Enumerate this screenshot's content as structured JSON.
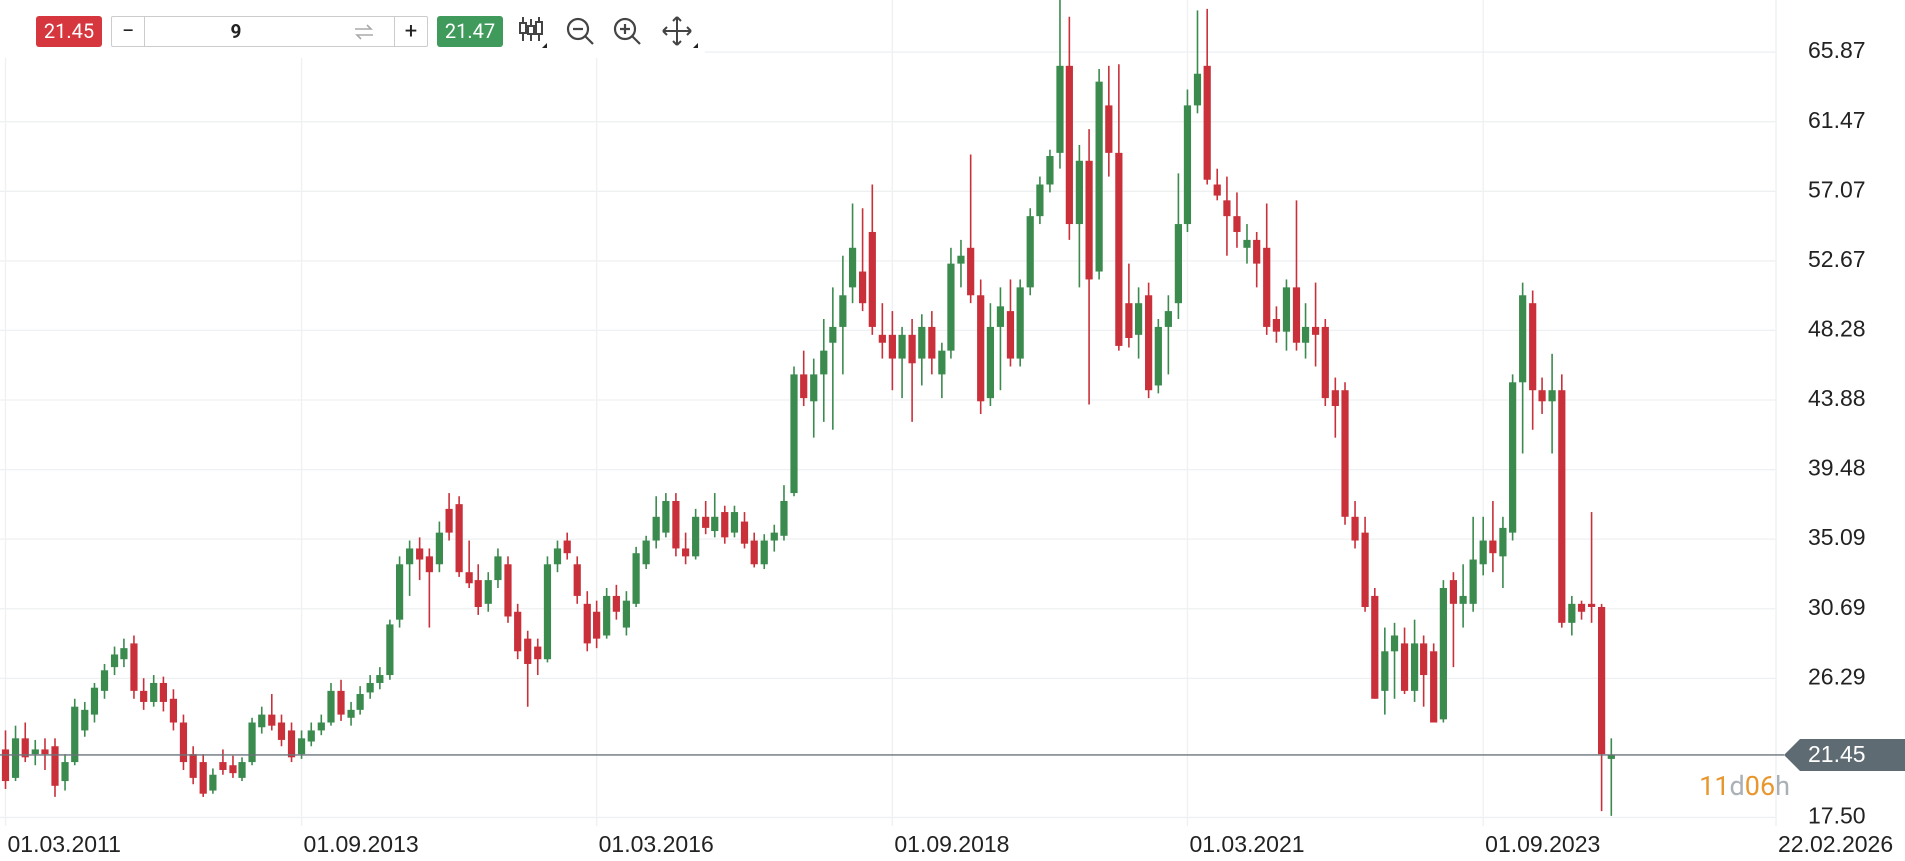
{
  "ui": {
    "bid": "21.45",
    "minus": "−",
    "quantity": "9",
    "plus": "+",
    "ask": "21.47",
    "countdown": [
      "11",
      "d",
      "06",
      "h"
    ]
  },
  "chart_data": {
    "type": "candlestick",
    "up_color": "#3b8a4e",
    "down_color": "#c9303a",
    "grid": true,
    "current_price": 21.45,
    "xlim": [
      "12.02.2011",
      "22.02.2026"
    ],
    "xticks": [
      "01.03.2011",
      "01.09.2013",
      "01.03.2016",
      "01.09.2018",
      "01.03.2021",
      "01.09.2023",
      "22.02.2026"
    ],
    "ylim": [
      16.96,
      69.16
    ],
    "yticks": [
      {
        "value": 17.5,
        "label": "17.50"
      },
      26.29,
      30.69,
      35.09,
      39.48,
      43.88,
      48.28,
      52.67,
      57.07,
      61.47,
      65.87
    ],
    "x": [
      "01.03.2011",
      "01.04.2011",
      "01.05.2011",
      "01.06.2011",
      "01.07.2011",
      "01.08.2011",
      "01.09.2011",
      "01.10.2011",
      "01.11.2011",
      "01.12.2011",
      "01.01.2012",
      "01.02.2012",
      "01.03.2012",
      "01.04.2012",
      "01.05.2012",
      "01.06.2012",
      "01.07.2012",
      "01.08.2012",
      "01.09.2012",
      "01.10.2012",
      "01.11.2012",
      "01.12.2012",
      "01.01.2013",
      "01.02.2013",
      "01.03.2013",
      "01.04.2013",
      "01.05.2013",
      "01.06.2013",
      "01.07.2013",
      "01.08.2013",
      "01.09.2013",
      "01.10.2013",
      "01.11.2013",
      "01.12.2013",
      "01.01.2014",
      "01.02.2014",
      "01.03.2014",
      "01.04.2014",
      "01.05.2014",
      "01.06.2014",
      "01.07.2014",
      "01.08.2014",
      "01.09.2014",
      "01.10.2014",
      "01.11.2014",
      "01.12.2014",
      "01.01.2015",
      "01.02.2015",
      "01.03.2015",
      "01.04.2015",
      "01.05.2015",
      "01.06.2015",
      "01.07.2015",
      "01.08.2015",
      "01.09.2015",
      "01.10.2015",
      "01.11.2015",
      "01.12.2015",
      "01.01.2016",
      "01.02.2016",
      "01.03.2016",
      "01.04.2016",
      "01.05.2016",
      "01.06.2016",
      "01.07.2016",
      "01.08.2016",
      "01.09.2016",
      "01.10.2016",
      "01.11.2016",
      "01.12.2016",
      "01.01.2017",
      "01.02.2017",
      "01.03.2017",
      "01.04.2017",
      "01.05.2017",
      "01.06.2017",
      "01.07.2017",
      "01.08.2017",
      "01.09.2017",
      "01.10.2017",
      "01.11.2017",
      "01.12.2017",
      "01.01.2018",
      "01.02.2018",
      "01.03.2018",
      "01.04.2018",
      "01.05.2018",
      "01.06.2018",
      "01.07.2018",
      "01.08.2018",
      "01.09.2018",
      "01.10.2018",
      "01.11.2018",
      "01.12.2018",
      "01.01.2019",
      "01.02.2019",
      "01.03.2019",
      "01.04.2019",
      "01.05.2019",
      "01.06.2019",
      "01.07.2019",
      "01.08.2019",
      "01.09.2019",
      "01.10.2019",
      "01.11.2019",
      "01.12.2019",
      "01.01.2020",
      "01.02.2020",
      "01.03.2020",
      "01.04.2020",
      "01.05.2020",
      "01.06.2020",
      "01.07.2020",
      "01.08.2020",
      "01.09.2020",
      "01.10.2020",
      "01.11.2020",
      "01.12.2020",
      "01.01.2021",
      "01.02.2021",
      "01.03.2021",
      "01.04.2021",
      "01.05.2021",
      "01.06.2021",
      "01.07.2021",
      "01.08.2021",
      "01.09.2021",
      "01.10.2021",
      "01.11.2021",
      "01.12.2021",
      "01.01.2022",
      "01.02.2022",
      "01.03.2022",
      "01.04.2022",
      "01.05.2022",
      "01.06.2022",
      "01.07.2022",
      "01.08.2022",
      "01.09.2022",
      "01.10.2022",
      "01.11.2022",
      "01.12.2022",
      "01.01.2023",
      "01.02.2023",
      "01.03.2023",
      "01.04.2023",
      "01.05.2023",
      "01.06.2023",
      "01.07.2023",
      "01.08.2023",
      "01.09.2023",
      "01.10.2023",
      "01.11.2023",
      "01.12.2023",
      "01.01.2024",
      "01.02.2024",
      "01.03.2024",
      "01.04.2024",
      "01.05.2024",
      "01.06.2024",
      "01.07.2024",
      "01.08.2024",
      "01.09.2024",
      "01.10.2024"
    ],
    "ohlc": [
      [
        21.8,
        23.0,
        19.3,
        19.8
      ],
      [
        20.0,
        23.3,
        19.8,
        22.5
      ],
      [
        22.5,
        23.5,
        21.0,
        21.3
      ],
      [
        21.5,
        22.4,
        20.8,
        21.8
      ],
      [
        21.8,
        22.5,
        20.5,
        21.5
      ],
      [
        22.0,
        22.5,
        18.8,
        19.5
      ],
      [
        19.8,
        21.5,
        19.2,
        21.0
      ],
      [
        21.0,
        25.0,
        20.8,
        24.5
      ],
      [
        23.0,
        24.8,
        22.6,
        24.3
      ],
      [
        24.0,
        26.0,
        23.5,
        25.7
      ],
      [
        25.5,
        27.2,
        25.0,
        26.8
      ],
      [
        27.0,
        28.3,
        26.5,
        27.8
      ],
      [
        27.5,
        28.8,
        27.0,
        28.2
      ],
      [
        28.5,
        29.0,
        25.0,
        25.5
      ],
      [
        25.5,
        26.3,
        24.3,
        24.8
      ],
      [
        24.8,
        26.5,
        24.5,
        26.0
      ],
      [
        26.0,
        26.4,
        24.2,
        24.8
      ],
      [
        25.0,
        25.6,
        23.0,
        23.5
      ],
      [
        23.5,
        24.0,
        20.5,
        21.0
      ],
      [
        21.5,
        22.0,
        19.6,
        20.0
      ],
      [
        21.0,
        21.5,
        18.8,
        19.0
      ],
      [
        19.2,
        20.6,
        19.0,
        20.2
      ],
      [
        21.0,
        21.8,
        20.2,
        20.5
      ],
      [
        20.8,
        21.4,
        20.0,
        20.3
      ],
      [
        20.0,
        21.3,
        19.8,
        21.0
      ],
      [
        21.0,
        23.8,
        20.8,
        23.5
      ],
      [
        23.2,
        24.5,
        22.8,
        24.0
      ],
      [
        24.0,
        25.3,
        23.0,
        23.3
      ],
      [
        23.5,
        24.0,
        22.0,
        22.4
      ],
      [
        23.0,
        23.5,
        21.0,
        21.3
      ],
      [
        21.5,
        23.0,
        21.2,
        22.5
      ],
      [
        22.3,
        23.5,
        22.0,
        23.0
      ],
      [
        23.0,
        24.0,
        22.7,
        23.5
      ],
      [
        23.5,
        26.0,
        23.3,
        25.5
      ],
      [
        25.5,
        26.2,
        23.6,
        24.0
      ],
      [
        23.8,
        24.8,
        23.3,
        24.3
      ],
      [
        24.3,
        25.8,
        24.0,
        25.3
      ],
      [
        25.4,
        26.5,
        25.0,
        26.0
      ],
      [
        26.0,
        27.0,
        25.6,
        26.5
      ],
      [
        26.5,
        30.0,
        26.2,
        29.7
      ],
      [
        30.0,
        34.0,
        29.5,
        33.5
      ],
      [
        33.5,
        35.0,
        31.5,
        34.5
      ],
      [
        34.5,
        35.2,
        32.5,
        33.8
      ],
      [
        34.0,
        34.5,
        29.5,
        33.0
      ],
      [
        33.5,
        36.2,
        33.0,
        35.5
      ],
      [
        37.0,
        38.0,
        35.0,
        35.5
      ],
      [
        37.3,
        37.8,
        32.7,
        33.0
      ],
      [
        33.0,
        35.0,
        32.0,
        32.3
      ],
      [
        32.5,
        33.5,
        30.3,
        30.8
      ],
      [
        31.0,
        33.0,
        30.5,
        32.5
      ],
      [
        32.5,
        34.5,
        32.0,
        34.0
      ],
      [
        33.5,
        34.0,
        29.8,
        30.2
      ],
      [
        30.5,
        31.0,
        27.5,
        28.0
      ],
      [
        28.8,
        29.3,
        24.5,
        27.2
      ],
      [
        28.3,
        28.8,
        26.5,
        27.5
      ],
      [
        27.5,
        34.0,
        27.3,
        33.5
      ],
      [
        33.5,
        35.0,
        33.0,
        34.5
      ],
      [
        35.0,
        35.5,
        33.8,
        34.2
      ],
      [
        33.5,
        34.0,
        31.0,
        31.5
      ],
      [
        31.0,
        31.8,
        28.0,
        28.5
      ],
      [
        30.5,
        31.2,
        28.2,
        28.8
      ],
      [
        29.0,
        32.0,
        28.8,
        31.5
      ],
      [
        31.5,
        32.2,
        30.0,
        30.5
      ],
      [
        29.5,
        31.8,
        29.0,
        31.2
      ],
      [
        31.0,
        34.6,
        30.8,
        34.2
      ],
      [
        33.5,
        35.3,
        33.2,
        35.0
      ],
      [
        35.0,
        37.8,
        34.5,
        36.5
      ],
      [
        35.5,
        38.0,
        35.2,
        37.5
      ],
      [
        37.5,
        38.0,
        34.0,
        34.5
      ],
      [
        34.5,
        35.5,
        33.5,
        34.0
      ],
      [
        34.0,
        37.0,
        33.8,
        36.5
      ],
      [
        36.5,
        37.5,
        35.4,
        35.8
      ],
      [
        35.6,
        38.0,
        35.2,
        36.5
      ],
      [
        36.8,
        37.2,
        34.8,
        35.2
      ],
      [
        35.5,
        37.2,
        35.2,
        36.8
      ],
      [
        36.2,
        36.8,
        34.5,
        34.8
      ],
      [
        35.0,
        35.5,
        33.3,
        33.5
      ],
      [
        33.5,
        35.4,
        33.2,
        35.0
      ],
      [
        35.0,
        36.0,
        34.3,
        35.5
      ],
      [
        35.3,
        38.5,
        35.0,
        37.5
      ],
      [
        38.0,
        46.0,
        37.8,
        45.5
      ],
      [
        45.5,
        47.0,
        43.5,
        44.0
      ],
      [
        43.8,
        46.5,
        41.5,
        45.5
      ],
      [
        45.5,
        49.0,
        42.5,
        47.0
      ],
      [
        47.5,
        51.0,
        42.0,
        48.5
      ],
      [
        48.5,
        53.0,
        45.5,
        50.5
      ],
      [
        51.0,
        56.3,
        50.0,
        53.5
      ],
      [
        52.0,
        56.0,
        49.5,
        50.0
      ],
      [
        54.5,
        57.5,
        48.0,
        48.5
      ],
      [
        48.0,
        50.0,
        46.5,
        47.5
      ],
      [
        48.0,
        49.5,
        44.5,
        46.5
      ],
      [
        46.5,
        48.5,
        44.0,
        48.0
      ],
      [
        48.0,
        49.0,
        42.5,
        46.2
      ],
      [
        46.5,
        49.3,
        44.8,
        48.5
      ],
      [
        48.5,
        49.5,
        45.5,
        46.5
      ],
      [
        45.5,
        47.5,
        44.0,
        47.0
      ],
      [
        47.0,
        53.5,
        46.5,
        52.5
      ],
      [
        52.5,
        54.0,
        51.0,
        53.0
      ],
      [
        53.5,
        59.4,
        50.0,
        50.5
      ],
      [
        50.5,
        51.5,
        43.0,
        43.8
      ],
      [
        44.0,
        50.0,
        43.5,
        48.5
      ],
      [
        48.5,
        51.0,
        44.5,
        49.8
      ],
      [
        49.5,
        51.5,
        46.0,
        46.5
      ],
      [
        46.5,
        51.5,
        46.0,
        51.0
      ],
      [
        51.0,
        56.0,
        50.5,
        55.5
      ],
      [
        55.5,
        58.0,
        55.0,
        57.5
      ],
      [
        57.5,
        59.7,
        57.0,
        59.3
      ],
      [
        59.5,
        69.2,
        58.5,
        65.0
      ],
      [
        65.0,
        68.1,
        54.0,
        55.0
      ],
      [
        55.0,
        60.0,
        51.0,
        59.0
      ],
      [
        59.0,
        61.0,
        43.6,
        51.5
      ],
      [
        52.0,
        64.8,
        51.5,
        64.0
      ],
      [
        62.5,
        65.0,
        58.0,
        59.5
      ],
      [
        59.5,
        65.1,
        47.0,
        47.3
      ],
      [
        50.0,
        52.5,
        47.2,
        47.8
      ],
      [
        48.0,
        51.0,
        46.5,
        50.0
      ],
      [
        50.5,
        51.3,
        44.0,
        44.5
      ],
      [
        44.8,
        49.0,
        44.3,
        48.5
      ],
      [
        48.5,
        50.5,
        45.5,
        49.5
      ],
      [
        50.0,
        58.2,
        49.0,
        55.0
      ],
      [
        55.0,
        63.5,
        54.5,
        62.5
      ],
      [
        62.5,
        68.5,
        62.0,
        64.5
      ],
      [
        65.0,
        68.6,
        57.5,
        57.8
      ],
      [
        57.5,
        58.5,
        56.5,
        56.8
      ],
      [
        56.5,
        58.0,
        53.0,
        55.5
      ],
      [
        55.5,
        57.0,
        53.5,
        54.5
      ],
      [
        53.5,
        55.0,
        52.5,
        54.0
      ],
      [
        54.0,
        54.5,
        51.0,
        52.5
      ],
      [
        53.5,
        56.3,
        48.0,
        48.5
      ],
      [
        49.0,
        49.8,
        47.5,
        48.2
      ],
      [
        48.2,
        51.5,
        47.0,
        51.0
      ],
      [
        51.0,
        56.5,
        47.0,
        47.5
      ],
      [
        47.5,
        50.0,
        46.5,
        48.5
      ],
      [
        48.5,
        51.3,
        46.0,
        48.0
      ],
      [
        48.5,
        49.0,
        43.5,
        44.0
      ],
      [
        44.5,
        45.3,
        41.5,
        43.5
      ],
      [
        44.5,
        45.0,
        36.0,
        36.5
      ],
      [
        36.5,
        37.5,
        34.5,
        35.0
      ],
      [
        35.5,
        36.5,
        30.5,
        30.8
      ],
      [
        31.5,
        32.0,
        25.0,
        25.0
      ],
      [
        25.5,
        29.5,
        24.0,
        28.0
      ],
      [
        28.0,
        29.8,
        25.0,
        29.0
      ],
      [
        28.5,
        29.5,
        25.3,
        25.5
      ],
      [
        25.5,
        30.0,
        24.8,
        28.5
      ],
      [
        28.5,
        29.0,
        24.5,
        26.5
      ],
      [
        28.0,
        28.5,
        23.5,
        23.5
      ],
      [
        23.7,
        32.5,
        23.5,
        32.0
      ],
      [
        32.5,
        33.0,
        27.0,
        31.0
      ],
      [
        31.0,
        33.5,
        29.5,
        31.5
      ],
      [
        31.0,
        36.5,
        30.5,
        33.8
      ],
      [
        33.5,
        36.5,
        32.8,
        35.0
      ],
      [
        35.0,
        37.5,
        33.0,
        34.2
      ],
      [
        34.0,
        36.5,
        32.0,
        35.8
      ],
      [
        35.5,
        45.5,
        35.0,
        45.0
      ],
      [
        45.0,
        51.3,
        40.5,
        50.5
      ],
      [
        50.0,
        50.8,
        42.0,
        44.5
      ],
      [
        44.5,
        45.3,
        43.0,
        43.8
      ],
      [
        43.8,
        46.8,
        40.5,
        44.5
      ],
      [
        44.5,
        45.5,
        29.5,
        29.8
      ],
      [
        29.8,
        31.5,
        29.0,
        31.0
      ],
      [
        31.0,
        31.2,
        30.0,
        30.5
      ],
      [
        31.0,
        36.8,
        29.8,
        30.8
      ],
      [
        30.8,
        31.0,
        17.9,
        21.5
      ],
      [
        21.2,
        22.5,
        17.6,
        21.45
      ]
    ]
  }
}
